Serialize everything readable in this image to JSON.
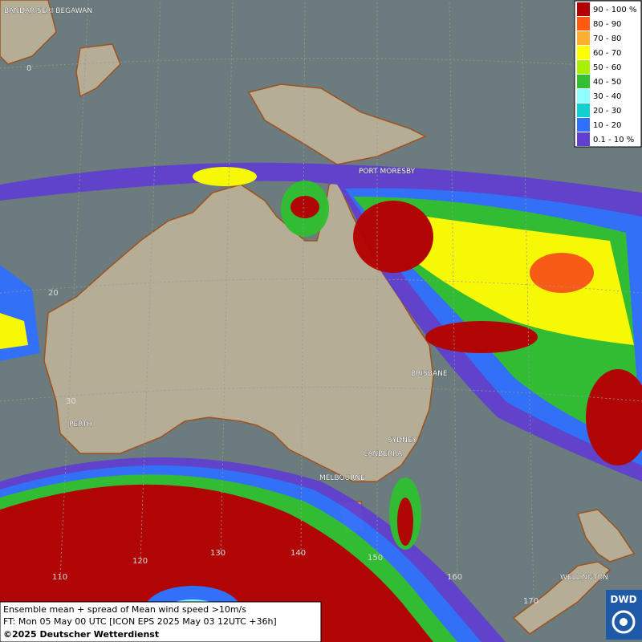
{
  "map": {
    "cities": [
      {
        "label": "BANDAR SERI BEGAWAN"
      },
      {
        "label": "PORT MORESBY"
      },
      {
        "label": "BRISBANE"
      },
      {
        "label": "PERTH"
      },
      {
        "label": "SYDNEY"
      },
      {
        "label": "CANBERRA"
      },
      {
        "label": "MELBOURNE"
      },
      {
        "label": "WELLINGTON"
      }
    ],
    "grid_labels": [
      "0",
      "20",
      "30",
      "110",
      "120",
      "130",
      "140",
      "150",
      "160",
      "170"
    ]
  },
  "legend": {
    "entries": [
      {
        "label": "90 - 100 %",
        "color": "#b40000"
      },
      {
        "label": "80 - 90",
        "color": "#ff5a10"
      },
      {
        "label": "70 - 80",
        "color": "#ffb030"
      },
      {
        "label": "60 - 70",
        "color": "#ffff00"
      },
      {
        "label": "50 - 60",
        "color": "#a8f000"
      },
      {
        "label": "40 - 50",
        "color": "#30c030"
      },
      {
        "label": "30 - 40",
        "color": "#90ffff"
      },
      {
        "label": "20 - 30",
        "color": "#10d0d0"
      },
      {
        "label": "10 - 20",
        "color": "#3070ff"
      },
      {
        "label": "0.1 - 10 %",
        "color": "#6040d0"
      }
    ]
  },
  "footer": {
    "lines": [
      "Ensemble mean + spread of Mean wind speed >10m/s",
      "FT: Mon 05 May 00 UTC [ICON EPS 2025 May 03 12UTC +36h]",
      "©2025 Deutscher Wetterdienst"
    ]
  },
  "logo": "DWD"
}
